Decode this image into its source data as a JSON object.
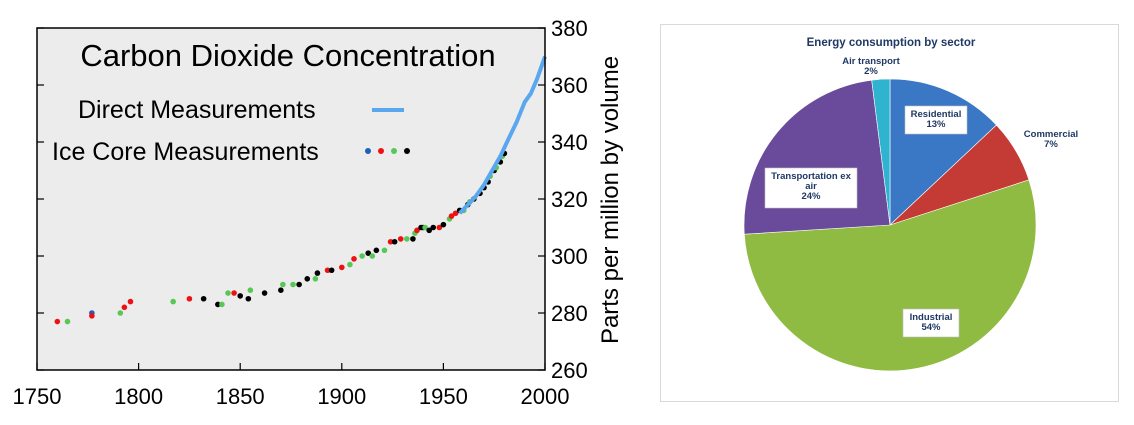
{
  "chart_data": [
    {
      "type": "scatter",
      "title": "Carbon Dioxide Concentration",
      "ylabel": "Parts per million by volume",
      "xlabel": "",
      "xlim": [
        1750,
        2000
      ],
      "ylim": [
        260,
        380
      ],
      "x_ticks": [
        "1750",
        "1800",
        "1850",
        "1900",
        "1950",
        "2000"
      ],
      "y_ticks": [
        "260",
        "280",
        "300",
        "320",
        "340",
        "360",
        "380"
      ],
      "background": "#ececec",
      "legend": {
        "placement": "top-left",
        "entries": [
          "Direct Measurements",
          "Ice Core Measurements"
        ]
      },
      "series": [
        {
          "name": "Direct Measurements",
          "kind": "line",
          "color": "#5aa6ef",
          "x": [
            1958,
            1962,
            1966,
            1970,
            1974,
            1978,
            1982,
            1986,
            1990,
            1993,
            1996,
            1999,
            2000
          ],
          "y": [
            315,
            318,
            321,
            325,
            330,
            335,
            341,
            347,
            354,
            357,
            362,
            368,
            370
          ]
        },
        {
          "name": "Ice Core Measurements",
          "kind": "points",
          "colors": {
            "blue": "#1f5fb8",
            "red": "#ee1111",
            "green": "#55c855",
            "black": "#000000"
          },
          "points": [
            [
              1760,
              277,
              "red"
            ],
            [
              1765,
              277,
              "green"
            ],
            [
              1777,
              280,
              "blue"
            ],
            [
              1777,
              279,
              "red"
            ],
            [
              1791,
              280,
              "green"
            ],
            [
              1793,
              282,
              "red"
            ],
            [
              1796,
              284,
              "red"
            ],
            [
              1817,
              284,
              "green"
            ],
            [
              1825,
              285,
              "red"
            ],
            [
              1832,
              285,
              "black"
            ],
            [
              1839,
              283,
              "black"
            ],
            [
              1841,
              283,
              "green"
            ],
            [
              1844,
              287,
              "green"
            ],
            [
              1847,
              287,
              "red"
            ],
            [
              1850,
              286,
              "black"
            ],
            [
              1854,
              285,
              "black"
            ],
            [
              1855,
              288,
              "green"
            ],
            [
              1862,
              287,
              "black"
            ],
            [
              1870,
              288,
              "black"
            ],
            [
              1871,
              290,
              "green"
            ],
            [
              1876,
              290,
              "green"
            ],
            [
              1879,
              290,
              "black"
            ],
            [
              1883,
              292,
              "black"
            ],
            [
              1887,
              292,
              "green"
            ],
            [
              1888,
              294,
              "black"
            ],
            [
              1893,
              295,
              "red"
            ],
            [
              1895,
              295,
              "black"
            ],
            [
              1900,
              296,
              "red"
            ],
            [
              1904,
              297,
              "green"
            ],
            [
              1906,
              299,
              "red"
            ],
            [
              1910,
              300,
              "green"
            ],
            [
              1913,
              301,
              "black"
            ],
            [
              1915,
              300,
              "green"
            ],
            [
              1917,
              302,
              "black"
            ],
            [
              1921,
              302,
              "green"
            ],
            [
              1924,
              305,
              "red"
            ],
            [
              1926,
              305,
              "black"
            ],
            [
              1929,
              306,
              "red"
            ],
            [
              1932,
              306,
              "green"
            ],
            [
              1935,
              306,
              "black"
            ],
            [
              1936,
              308,
              "green"
            ],
            [
              1937,
              309,
              "red"
            ],
            [
              1939,
              310,
              "black"
            ],
            [
              1940,
              310,
              "black"
            ],
            [
              1941,
              310,
              "green"
            ],
            [
              1943,
              309,
              "black"
            ],
            [
              1945,
              310,
              "black"
            ],
            [
              1948,
              310,
              "red"
            ],
            [
              1950,
              311,
              "black"
            ],
            [
              1953,
              313,
              "green"
            ],
            [
              1954,
              314,
              "red"
            ],
            [
              1956,
              315,
              "red"
            ],
            [
              1958,
              316,
              "black"
            ],
            [
              1960,
              316,
              "green"
            ],
            [
              1962,
              318,
              "black"
            ],
            [
              1963,
              319,
              "green"
            ],
            [
              1965,
              320,
              "black"
            ],
            [
              1968,
              322,
              "black"
            ],
            [
              1970,
              324,
              "black"
            ],
            [
              1972,
              326,
              "black"
            ],
            [
              1973,
              328,
              "green"
            ],
            [
              1975,
              330,
              "black"
            ],
            [
              1976,
              331,
              "green"
            ],
            [
              1978,
              333,
              "black"
            ],
            [
              1979,
              335,
              "green"
            ],
            [
              1980,
              336,
              "black"
            ]
          ]
        }
      ]
    },
    {
      "type": "pie",
      "title": "Energy consumption  by sector",
      "slices": [
        {
          "label": "Residential",
          "value": 13,
          "value_label": "13%",
          "color": "#3a77c4"
        },
        {
          "label": "Commercial",
          "value": 7,
          "value_label": "7%",
          "color": "#c43a35"
        },
        {
          "label": "Industrial",
          "value": 54,
          "value_label": "54%",
          "color": "#8fbb42"
        },
        {
          "label": "Transportation ex air",
          "label_lines": [
            "Transportation ex",
            "air"
          ],
          "value": 24,
          "value_label": "24%",
          "color": "#6a4a9a"
        },
        {
          "label": "Air transport",
          "value": 2,
          "value_label": "2%",
          "color": "#2fb3cf"
        }
      ],
      "label_color": "#1f3864"
    }
  ]
}
